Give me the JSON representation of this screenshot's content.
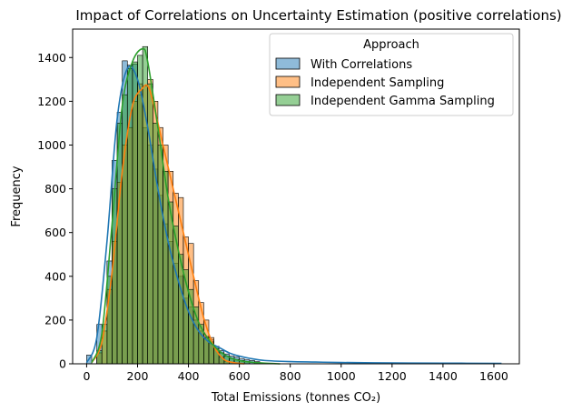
{
  "chart_data": {
    "type": "histogram",
    "title": "Impact of Correlations on Uncertainty Estimation (positive correlations)",
    "xlabel": "Total Emissions (tonnes CO₂)",
    "ylabel": "Frequency",
    "xlim": [
      -55,
      1700
    ],
    "ylim": [
      0,
      1530
    ],
    "x_ticks": [
      0,
      200,
      400,
      600,
      800,
      1000,
      1200,
      1400,
      1600
    ],
    "y_ticks": [
      0,
      200,
      400,
      600,
      800,
      1000,
      1200,
      1400
    ],
    "grid": false,
    "legend": {
      "title": "Approach",
      "placement": "upper-right"
    },
    "bin_width": 20,
    "series": [
      {
        "name": "With Correlations",
        "color": "#1f77b4",
        "bins": [
          {
            "x0": 0,
            "count": 40
          },
          {
            "x0": 40,
            "count": 180
          },
          {
            "x0": 80,
            "count": 470
          },
          {
            "x0": 100,
            "count": 930
          },
          {
            "x0": 120,
            "count": 1150
          },
          {
            "x0": 140,
            "count": 1385
          },
          {
            "x0": 160,
            "count": 1365
          },
          {
            "x0": 180,
            "count": 1370
          },
          {
            "x0": 200,
            "count": 1230
          },
          {
            "x0": 220,
            "count": 1080
          },
          {
            "x0": 240,
            "count": 1000
          },
          {
            "x0": 260,
            "count": 890
          },
          {
            "x0": 280,
            "count": 770
          },
          {
            "x0": 300,
            "count": 640
          },
          {
            "x0": 320,
            "count": 560
          },
          {
            "x0": 340,
            "count": 460
          },
          {
            "x0": 360,
            "count": 400
          },
          {
            "x0": 380,
            "count": 300
          },
          {
            "x0": 400,
            "count": 260
          },
          {
            "x0": 420,
            "count": 200
          },
          {
            "x0": 440,
            "count": 150
          },
          {
            "x0": 460,
            "count": 125
          },
          {
            "x0": 480,
            "count": 110
          },
          {
            "x0": 500,
            "count": 80
          },
          {
            "x0": 520,
            "count": 60
          },
          {
            "x0": 540,
            "count": 45
          },
          {
            "x0": 560,
            "count": 35
          },
          {
            "x0": 580,
            "count": 30
          },
          {
            "x0": 600,
            "count": 22
          },
          {
            "x0": 620,
            "count": 18
          },
          {
            "x0": 640,
            "count": 15
          },
          {
            "x0": 660,
            "count": 10
          }
        ],
        "kde": [
          [
            0,
            5
          ],
          [
            40,
            120
          ],
          [
            80,
            560
          ],
          [
            120,
            1120
          ],
          [
            160,
            1350
          ],
          [
            200,
            1300
          ],
          [
            240,
            1080
          ],
          [
            280,
            800
          ],
          [
            320,
            560
          ],
          [
            360,
            380
          ],
          [
            400,
            240
          ],
          [
            440,
            150
          ],
          [
            480,
            100
          ],
          [
            520,
            75
          ],
          [
            560,
            50
          ],
          [
            600,
            35
          ],
          [
            640,
            25
          ],
          [
            700,
            15
          ],
          [
            800,
            10
          ],
          [
            900,
            8
          ],
          [
            1000,
            6
          ],
          [
            1200,
            4
          ],
          [
            1400,
            3
          ],
          [
            1630,
            2
          ]
        ]
      },
      {
        "name": "Independent Sampling",
        "color": "#ff7f0e",
        "bins": [
          {
            "x0": 40,
            "count": 50
          },
          {
            "x0": 60,
            "count": 150
          },
          {
            "x0": 80,
            "count": 340
          },
          {
            "x0": 100,
            "count": 560
          },
          {
            "x0": 120,
            "count": 830
          },
          {
            "x0": 140,
            "count": 1000
          },
          {
            "x0": 160,
            "count": 1080
          },
          {
            "x0": 180,
            "count": 1200
          },
          {
            "x0": 200,
            "count": 1280
          },
          {
            "x0": 220,
            "count": 1270
          },
          {
            "x0": 240,
            "count": 1300
          },
          {
            "x0": 260,
            "count": 1200
          },
          {
            "x0": 280,
            "count": 1080
          },
          {
            "x0": 300,
            "count": 1000
          },
          {
            "x0": 320,
            "count": 880
          },
          {
            "x0": 340,
            "count": 780
          },
          {
            "x0": 360,
            "count": 760
          },
          {
            "x0": 380,
            "count": 580
          },
          {
            "x0": 400,
            "count": 550
          },
          {
            "x0": 420,
            "count": 380
          },
          {
            "x0": 440,
            "count": 280
          },
          {
            "x0": 460,
            "count": 200
          },
          {
            "x0": 480,
            "count": 120
          },
          {
            "x0": 500,
            "count": 70
          },
          {
            "x0": 520,
            "count": 30
          },
          {
            "x0": 540,
            "count": 12
          }
        ],
        "kde": [
          [
            20,
            5
          ],
          [
            60,
            100
          ],
          [
            100,
            420
          ],
          [
            140,
            880
          ],
          [
            180,
            1180
          ],
          [
            220,
            1260
          ],
          [
            240,
            1270
          ],
          [
            260,
            1200
          ],
          [
            300,
            1000
          ],
          [
            340,
            800
          ],
          [
            380,
            600
          ],
          [
            420,
            400
          ],
          [
            460,
            210
          ],
          [
            500,
            80
          ],
          [
            540,
            20
          ],
          [
            580,
            5
          ],
          [
            620,
            0
          ]
        ]
      },
      {
        "name": "Independent Gamma Sampling",
        "color": "#2ca02c",
        "bins": [
          {
            "x0": 40,
            "count": 60
          },
          {
            "x0": 60,
            "count": 180
          },
          {
            "x0": 80,
            "count": 400
          },
          {
            "x0": 100,
            "count": 800
          },
          {
            "x0": 120,
            "count": 1100
          },
          {
            "x0": 140,
            "count": 1230
          },
          {
            "x0": 160,
            "count": 1350
          },
          {
            "x0": 180,
            "count": 1380
          },
          {
            "x0": 200,
            "count": 1410
          },
          {
            "x0": 220,
            "count": 1450
          },
          {
            "x0": 240,
            "count": 1280
          },
          {
            "x0": 260,
            "count": 1100
          },
          {
            "x0": 280,
            "count": 1000
          },
          {
            "x0": 300,
            "count": 880
          },
          {
            "x0": 320,
            "count": 740
          },
          {
            "x0": 340,
            "count": 630
          },
          {
            "x0": 360,
            "count": 500
          },
          {
            "x0": 380,
            "count": 430
          },
          {
            "x0": 400,
            "count": 340
          },
          {
            "x0": 420,
            "count": 260
          },
          {
            "x0": 440,
            "count": 180
          },
          {
            "x0": 460,
            "count": 120
          },
          {
            "x0": 480,
            "count": 100
          },
          {
            "x0": 500,
            "count": 70
          },
          {
            "x0": 520,
            "count": 50
          },
          {
            "x0": 540,
            "count": 35
          },
          {
            "x0": 560,
            "count": 25
          },
          {
            "x0": 580,
            "count": 20
          },
          {
            "x0": 600,
            "count": 15
          },
          {
            "x0": 620,
            "count": 10
          }
        ],
        "kde": [
          [
            20,
            5
          ],
          [
            60,
            140
          ],
          [
            100,
            640
          ],
          [
            140,
            1180
          ],
          [
            180,
            1380
          ],
          [
            220,
            1440
          ],
          [
            240,
            1380
          ],
          [
            280,
            1080
          ],
          [
            320,
            760
          ],
          [
            360,
            520
          ],
          [
            400,
            330
          ],
          [
            440,
            190
          ],
          [
            480,
            110
          ],
          [
            520,
            60
          ],
          [
            560,
            30
          ],
          [
            600,
            15
          ],
          [
            640,
            8
          ],
          [
            700,
            3
          ],
          [
            760,
            0
          ]
        ]
      }
    ]
  }
}
